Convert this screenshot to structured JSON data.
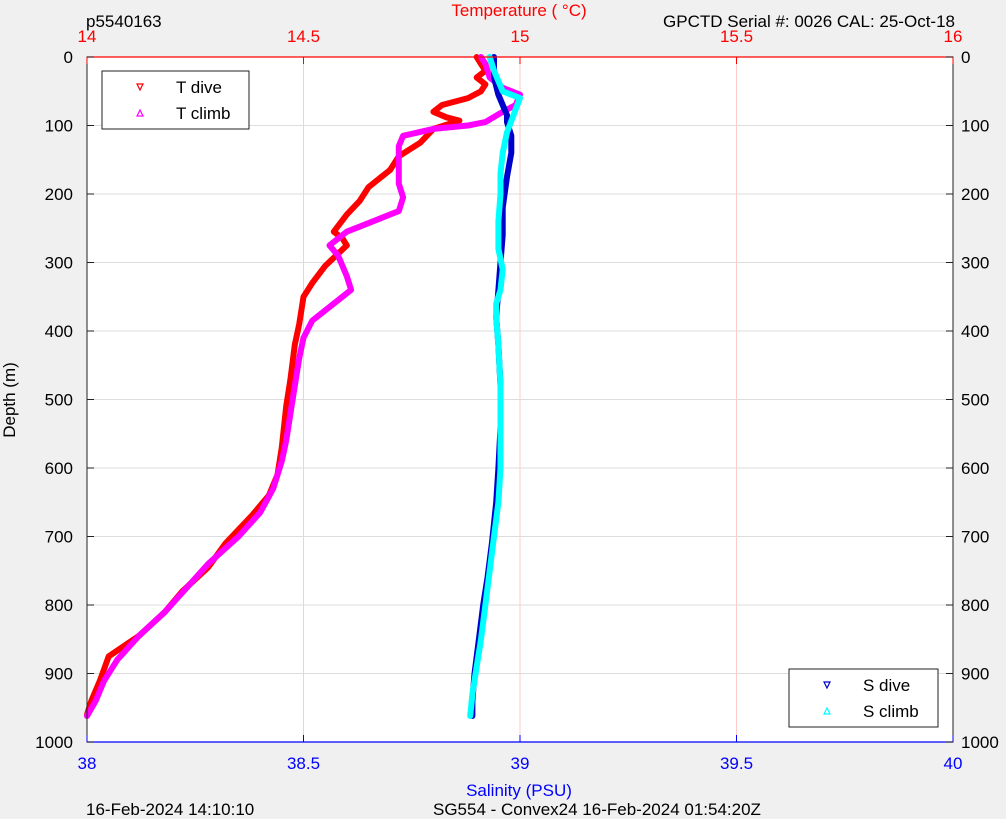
{
  "header": {
    "profile_id": "p5540163",
    "serial_info": "GPCTD Serial #: 0026 CAL: 25-Oct-18"
  },
  "footer": {
    "left_timestamp": "16-Feb-2024 14:10:10",
    "mission_info": "SG554 - Convex24 16-Feb-2024 01:54:20Z"
  },
  "colors": {
    "temperature_axis": "#ff0000",
    "salinity_axis": "#0000ff",
    "t_dive": "#ff0000",
    "t_climb": "#ff00ff",
    "s_dive": "#0000cc",
    "s_climb": "#00ffff",
    "grid_temp": "#ffcccc",
    "grid_depth": "#dddddd",
    "background": "#f0f0f0"
  },
  "chart_data": {
    "type": "line",
    "ylabel": "Depth (m)",
    "ylim": [
      0,
      1000
    ],
    "y_reversed": true,
    "yticks": [
      0,
      100,
      200,
      300,
      400,
      500,
      600,
      700,
      800,
      900,
      1000
    ],
    "x_top": {
      "label": "Temperature (    °C)",
      "lim": [
        14,
        16
      ],
      "ticks": [
        14,
        14.5,
        15,
        15.5,
        16
      ],
      "tick_labels": [
        "14",
        "14.5",
        "15",
        "15.5",
        "16"
      ]
    },
    "x_bottom": {
      "label": "Salinity (PSU)",
      "lim": [
        38,
        40
      ],
      "ticks": [
        38,
        38.5,
        39,
        39.5,
        40
      ],
      "tick_labels": [
        "38",
        "38.5",
        "39",
        "39.5",
        "40"
      ]
    },
    "grid": true,
    "legends": [
      {
        "placement": "top-left",
        "entries": [
          {
            "name": "T dive",
            "marker": "down-triangle",
            "color_key": "t_dive"
          },
          {
            "name": "T climb",
            "marker": "up-triangle",
            "color_key": "t_climb"
          }
        ]
      },
      {
        "placement": "bottom-right",
        "entries": [
          {
            "name": "S dive",
            "marker": "down-triangle",
            "color_key": "s_dive"
          },
          {
            "name": "S climb",
            "marker": "up-triangle",
            "color_key": "s_climb"
          }
        ]
      }
    ],
    "series": [
      {
        "name": "T dive",
        "axis": "temperature",
        "color_key": "t_dive",
        "points": [
          [
            14.9,
            0
          ],
          [
            14.91,
            10
          ],
          [
            14.92,
            20
          ],
          [
            14.9,
            30
          ],
          [
            14.92,
            40
          ],
          [
            14.91,
            50
          ],
          [
            14.88,
            60
          ],
          [
            14.82,
            70
          ],
          [
            14.8,
            80
          ],
          [
            14.83,
            88
          ],
          [
            14.86,
            93
          ],
          [
            14.8,
            105
          ],
          [
            14.77,
            125
          ],
          [
            14.72,
            145
          ],
          [
            14.7,
            165
          ],
          [
            14.68,
            175
          ],
          [
            14.65,
            190
          ],
          [
            14.63,
            210
          ],
          [
            14.6,
            230
          ],
          [
            14.57,
            255
          ],
          [
            14.59,
            265
          ],
          [
            14.6,
            275
          ],
          [
            14.55,
            305
          ],
          [
            14.52,
            330
          ],
          [
            14.5,
            350
          ],
          [
            14.49,
            390
          ],
          [
            14.48,
            420
          ],
          [
            14.47,
            470
          ],
          [
            14.46,
            510
          ],
          [
            14.45,
            570
          ],
          [
            14.44,
            610
          ],
          [
            14.42,
            640
          ],
          [
            14.38,
            670
          ],
          [
            14.32,
            710
          ],
          [
            14.28,
            745
          ],
          [
            14.22,
            780
          ],
          [
            14.18,
            810
          ],
          [
            14.12,
            845
          ],
          [
            14.05,
            875
          ],
          [
            14.03,
            910
          ],
          [
            14.01,
            940
          ],
          [
            14.0,
            960
          ]
        ]
      },
      {
        "name": "T climb",
        "axis": "temperature",
        "color_key": "t_climb",
        "points": [
          [
            14.0,
            962
          ],
          [
            14.02,
            940
          ],
          [
            14.04,
            910
          ],
          [
            14.07,
            880
          ],
          [
            14.12,
            845
          ],
          [
            14.18,
            810
          ],
          [
            14.23,
            775
          ],
          [
            14.28,
            740
          ],
          [
            14.35,
            700
          ],
          [
            14.4,
            665
          ],
          [
            14.43,
            630
          ],
          [
            14.45,
            590
          ],
          [
            14.46,
            560
          ],
          [
            14.47,
            520
          ],
          [
            14.48,
            480
          ],
          [
            14.49,
            440
          ],
          [
            14.5,
            410
          ],
          [
            14.52,
            385
          ],
          [
            14.56,
            365
          ],
          [
            14.61,
            340
          ],
          [
            14.6,
            320
          ],
          [
            14.58,
            290
          ],
          [
            14.56,
            275
          ],
          [
            14.6,
            255
          ],
          [
            14.66,
            240
          ],
          [
            14.72,
            225
          ],
          [
            14.73,
            205
          ],
          [
            14.72,
            185
          ],
          [
            14.72,
            170
          ],
          [
            14.72,
            150
          ],
          [
            14.72,
            130
          ],
          [
            14.73,
            115
          ],
          [
            14.8,
            105
          ],
          [
            14.88,
            100
          ],
          [
            14.92,
            95
          ],
          [
            14.96,
            80
          ],
          [
            14.99,
            70
          ],
          [
            15.0,
            55
          ],
          [
            14.96,
            45
          ],
          [
            14.93,
            30
          ],
          [
            14.92,
            10
          ],
          [
            14.91,
            0
          ]
        ]
      },
      {
        "name": "S dive",
        "axis": "salinity",
        "color_key": "s_dive",
        "points": [
          [
            38.94,
            0
          ],
          [
            38.94,
            30
          ],
          [
            38.95,
            55
          ],
          [
            38.97,
            85
          ],
          [
            38.97,
            95
          ],
          [
            38.98,
            115
          ],
          [
            38.98,
            140
          ],
          [
            38.97,
            175
          ],
          [
            38.96,
            220
          ],
          [
            38.96,
            260
          ],
          [
            38.955,
            300
          ],
          [
            38.95,
            340
          ],
          [
            38.945,
            380
          ],
          [
            38.95,
            420
          ],
          [
            38.955,
            480
          ],
          [
            38.955,
            540
          ],
          [
            38.95,
            600
          ],
          [
            38.945,
            650
          ],
          [
            38.935,
            710
          ],
          [
            38.925,
            760
          ],
          [
            38.915,
            800
          ],
          [
            38.905,
            850
          ],
          [
            38.895,
            900
          ],
          [
            38.89,
            940
          ],
          [
            38.89,
            962
          ]
        ]
      },
      {
        "name": "S climb",
        "axis": "salinity",
        "color_key": "s_climb",
        "points": [
          [
            38.885,
            962
          ],
          [
            38.89,
            930
          ],
          [
            38.9,
            890
          ],
          [
            38.91,
            850
          ],
          [
            38.92,
            800
          ],
          [
            38.93,
            750
          ],
          [
            38.94,
            700
          ],
          [
            38.95,
            650
          ],
          [
            38.955,
            600
          ],
          [
            38.955,
            540
          ],
          [
            38.955,
            480
          ],
          [
            38.95,
            420
          ],
          [
            38.945,
            380
          ],
          [
            38.945,
            360
          ],
          [
            38.955,
            340
          ],
          [
            38.96,
            310
          ],
          [
            38.95,
            280
          ],
          [
            38.95,
            240
          ],
          [
            38.955,
            200
          ],
          [
            38.955,
            170
          ],
          [
            38.96,
            140
          ],
          [
            38.97,
            110
          ],
          [
            39.0,
            60
          ],
          [
            38.96,
            50
          ],
          [
            38.94,
            20
          ],
          [
            38.93,
            0
          ]
        ]
      }
    ]
  }
}
